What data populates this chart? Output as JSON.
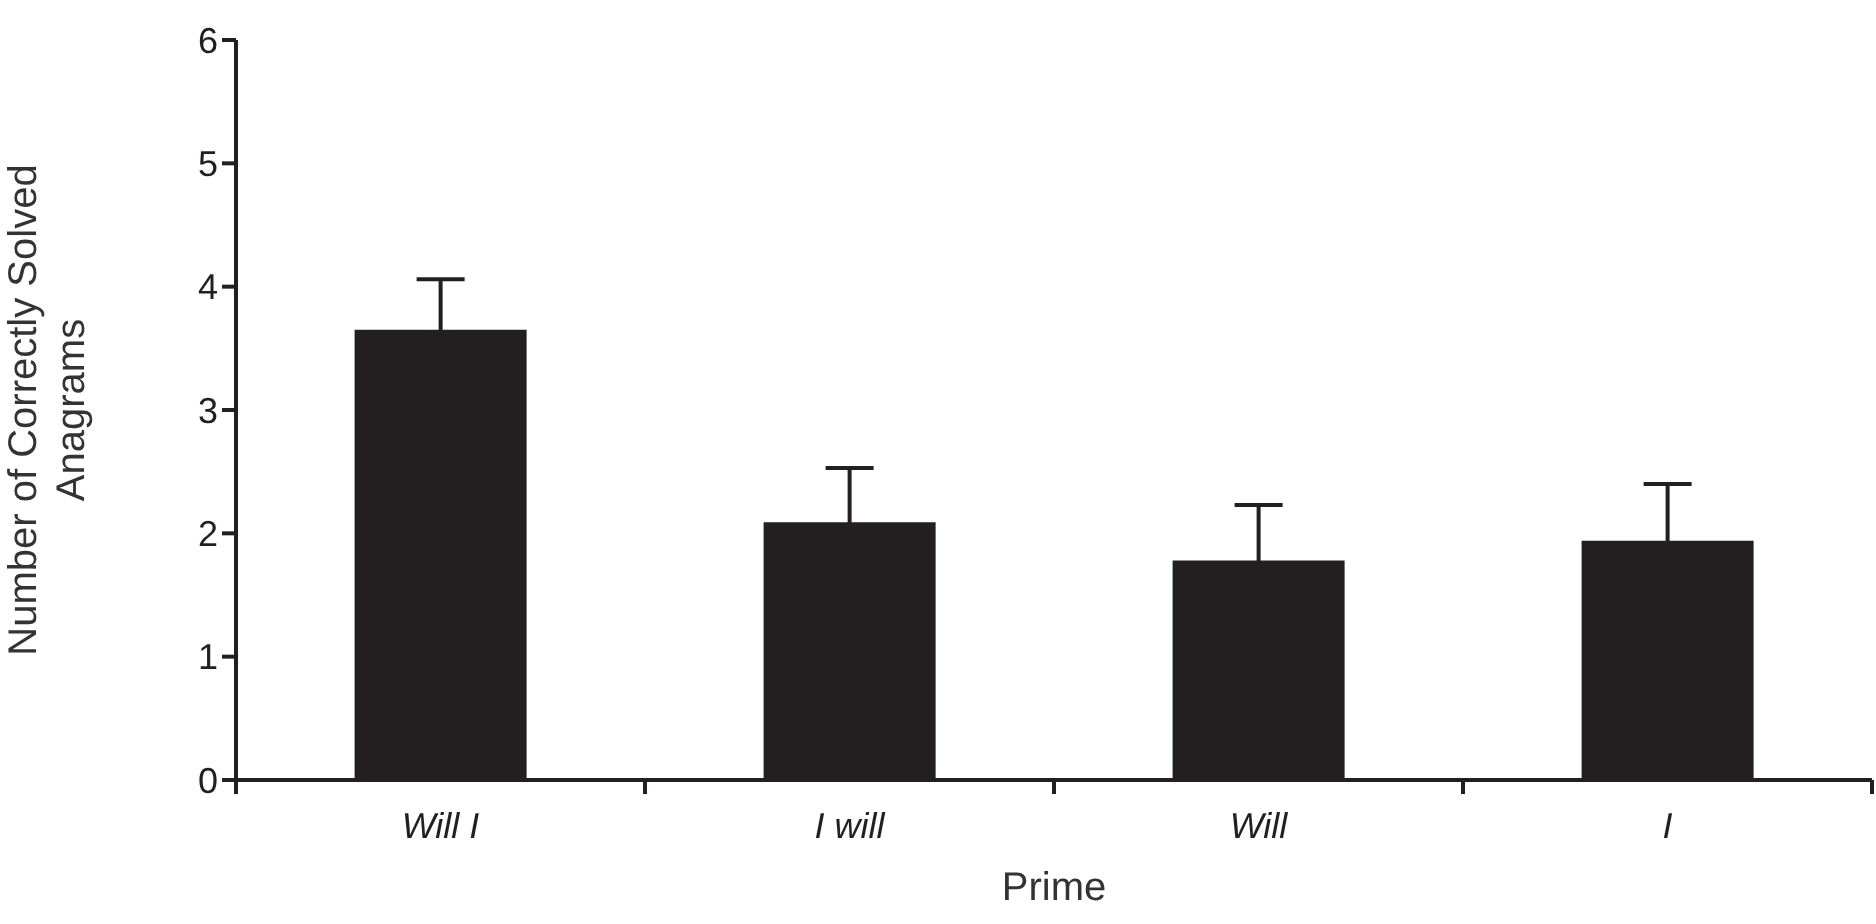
{
  "chart_data": {
    "type": "bar",
    "xlabel": "Prime",
    "ylabel": "Number of Correctly Solved Anagrams",
    "categories": [
      "Will I",
      "I will",
      "Will",
      "I"
    ],
    "values": [
      3.65,
      2.09,
      1.78,
      1.94
    ],
    "errors": [
      0.41,
      0.44,
      0.45,
      0.46
    ],
    "color": "#231f20",
    "ylim": [
      0,
      6
    ],
    "yticks": [
      0,
      1,
      2,
      3,
      4,
      5,
      6
    ],
    "grid": false,
    "legend": false
  }
}
